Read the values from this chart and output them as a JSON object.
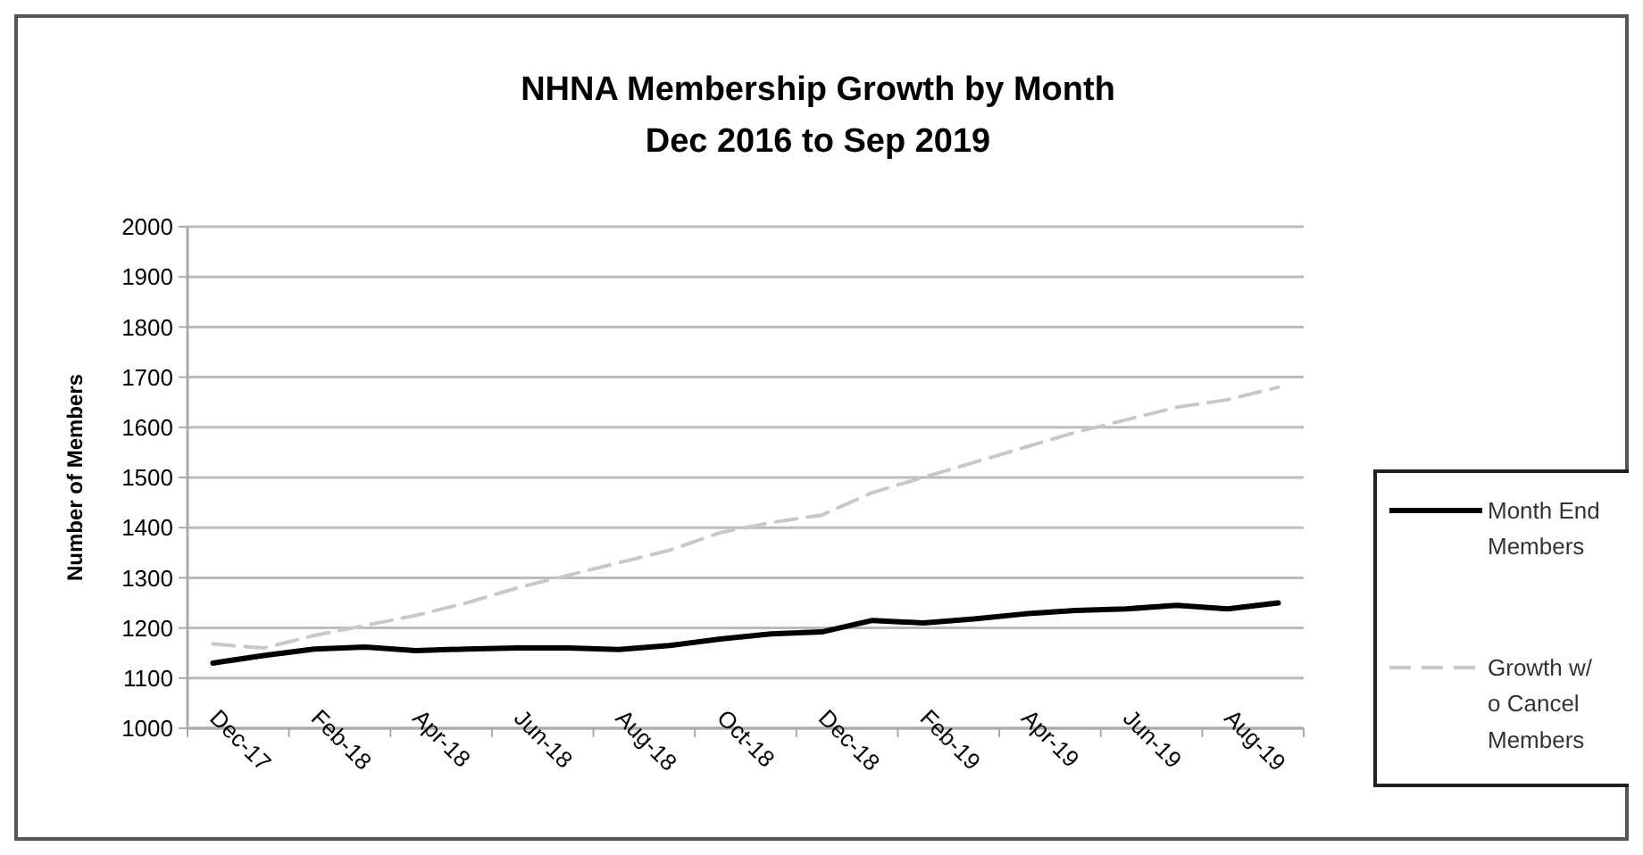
{
  "chart_data": {
    "type": "line",
    "title": "NHNA Membership Growth by Month",
    "subtitle": "Dec 2016 to Sep 2019",
    "ylabel": "Number of Members",
    "categories": [
      "Dec-17",
      null,
      "Feb-18",
      null,
      "Apr-18",
      null,
      "Jun-18",
      null,
      "Aug-18",
      null,
      "Oct-18",
      null,
      "Dec-18",
      null,
      "Feb-19",
      null,
      "Apr-19",
      null,
      "Jun-19",
      null,
      "Aug-19",
      null
    ],
    "series": [
      {
        "name": "Month End Members",
        "color": "#000000",
        "line_style": "solid",
        "values": [
          1130,
          1145,
          1158,
          1162,
          1155,
          1158,
          1160,
          1160,
          1157,
          1165,
          1178,
          1188,
          1192,
          1215,
          1210,
          1218,
          1228,
          1235,
          1238,
          1245,
          1238,
          1250
        ]
      },
      {
        "name": "Growth w/ o Cancel Members",
        "color": "#c8c8c8",
        "line_style": "dashed",
        "values": [
          1168,
          1160,
          1185,
          1205,
          1225,
          1250,
          1280,
          1305,
          1330,
          1355,
          1390,
          1410,
          1425,
          1470,
          1500,
          1530,
          1560,
          1590,
          1615,
          1640,
          1655,
          1680
        ]
      }
    ],
    "ylim": [
      1000,
      2000
    ],
    "yticks": [
      1000,
      1100,
      1200,
      1300,
      1400,
      1500,
      1600,
      1700,
      1800,
      1900,
      2000
    ],
    "grid": "y",
    "legend": "right",
    "marker": "none"
  }
}
